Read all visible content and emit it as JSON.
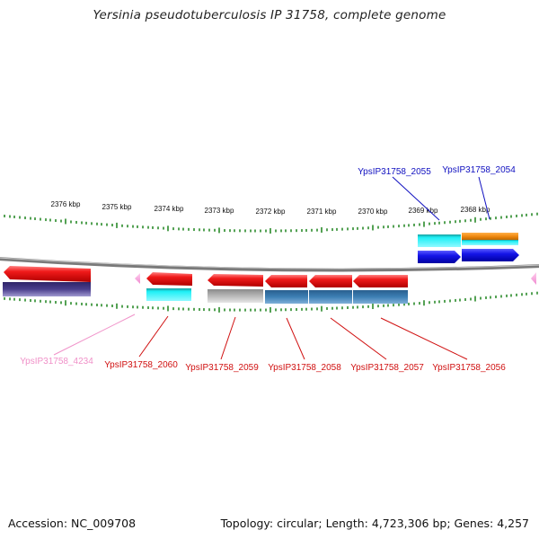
{
  "title": "Yersinia pseudotuberculosis IP 31758, complete genome",
  "footer": {
    "accession": "Accession: NC_009708",
    "topology": "Topology: circular; Length: 4,723,306 bp; Genes: 4,257"
  },
  "colors": {
    "tick": "#2a8a2a",
    "backbone": "#8a8a8a",
    "red": "#e8101a",
    "cyan": "#22e4ee",
    "blue": "#1010e6",
    "purple": "#4a3e8c",
    "orange": "#f08a10",
    "steel": "#3d7fb4",
    "gray": "#b0b0b0",
    "pink": "#f29ad6",
    "label_red": "#d01010",
    "label_blue": "#1010c0",
    "label_pink": "#f090c8"
  },
  "scale": {
    "ticks_kbp": [
      "2376 kbp",
      "2375 kbp",
      "2374 kbp",
      "2373 kbp",
      "2372 kbp",
      "2371 kbp",
      "2370 kbp",
      "2369 kbp",
      "2368 kbp"
    ]
  },
  "gene_labels": [
    {
      "id": "YpsIP31758_2055",
      "color": "blue"
    },
    {
      "id": "YpsIP31758_2054",
      "color": "blue"
    },
    {
      "id": "YpsIP31758_4234",
      "color": "pink"
    },
    {
      "id": "YpsIP31758_2060",
      "color": "red"
    },
    {
      "id": "YpsIP31758_2059",
      "color": "red"
    },
    {
      "id": "YpsIP31758_2058",
      "color": "red"
    },
    {
      "id": "YpsIP31758_2057",
      "color": "red"
    },
    {
      "id": "YpsIP31758_2056",
      "color": "red"
    }
  ]
}
